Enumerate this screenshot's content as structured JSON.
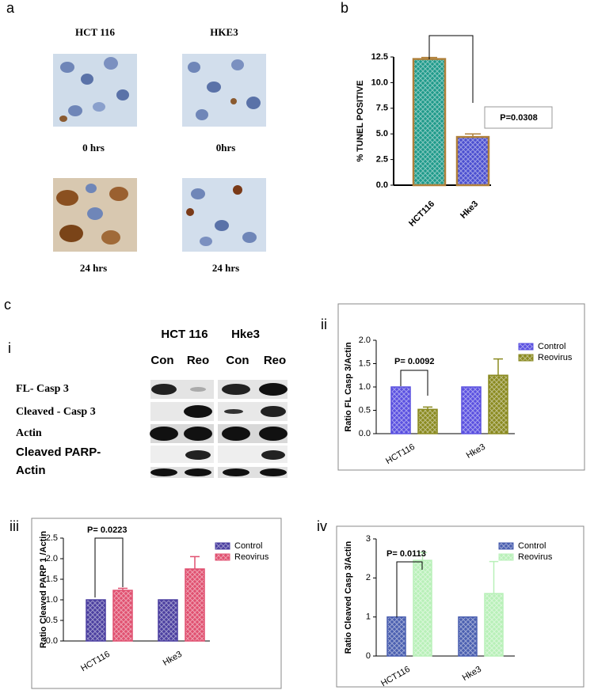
{
  "panels": {
    "a": {
      "label": "a",
      "columns": [
        "HCT 116",
        "HKE3"
      ],
      "captions": [
        [
          "0 hrs",
          "0hrs"
        ],
        [
          "24 hrs",
          "24 hrs"
        ]
      ]
    },
    "c": {
      "label": "c",
      "i": {
        "label": "i",
        "cell_lines": [
          "HCT 116",
          "Hke3"
        ],
        "conditions": [
          "Con",
          "Reo",
          "Con",
          "Reo"
        ],
        "rows": [
          "FL- Casp 3",
          "Cleaved - Casp 3",
          "Actin",
          "Cleaved PARP-",
          "Actin"
        ]
      }
    }
  },
  "chart_data": [
    {
      "type": "bar",
      "label": "b",
      "y_label": "% TUNEL POSITIVE",
      "categories": [
        "HCT116",
        "Hke3"
      ],
      "values": [
        12.3,
        4.7
      ],
      "errors": [
        0.15,
        0.3
      ],
      "colors": [
        "#1f9a8a",
        "#4b4fd0"
      ],
      "edgecolor": "#b0803a",
      "ylim": [
        0,
        12.5
      ],
      "yticks": [
        {
          "value": 0,
          "label": "0.0"
        },
        2.5,
        {
          "value": 5,
          "label": "5.0"
        },
        7.5,
        {
          "value": 10,
          "label": "10.0"
        },
        12.5
      ],
      "annotation": "P=0.0308"
    },
    {
      "type": "bar",
      "label": "ii",
      "y_label": "Ratio FL Casp 3/Actin",
      "categories": [
        "HCT116",
        "Hke3"
      ],
      "series": [
        {
          "name": "Control",
          "color": "#5a50e0",
          "values": [
            1.0,
            1.0
          ]
        },
        {
          "name": "Reovirus",
          "color": "#8a8a20",
          "values": [
            0.52,
            1.25
          ],
          "errors": [
            0.05,
            0.35
          ]
        }
      ],
      "ylim": [
        0,
        2
      ],
      "yticks": [
        {
          "value": 0,
          "label": "0.0"
        },
        0.5,
        {
          "value": 1,
          "label": "1.0"
        },
        1.5,
        {
          "value": 2,
          "label": "2.0"
        }
      ],
      "annotation": "P= 0.0092"
    },
    {
      "type": "bar",
      "label": "iii",
      "y_label": "Ratio Cleaved PARP 1 /Actin",
      "categories": [
        "HCT116",
        "Hke3"
      ],
      "series": [
        {
          "name": "Control",
          "color": "#4b3fa0",
          "values": [
            1.0,
            1.0
          ]
        },
        {
          "name": "Reovirus",
          "color": "#e05070",
          "values": [
            1.23,
            1.75
          ],
          "errors": [
            0.05,
            0.3
          ]
        }
      ],
      "ylim": [
        0,
        2.5
      ],
      "yticks": [
        {
          "value": 0,
          "label": "0.0"
        },
        0.5,
        {
          "value": 1,
          "label": "1.0"
        },
        1.5,
        {
          "value": 2,
          "label": "2.0"
        },
        2.5
      ],
      "annotation": "P= 0.0223"
    },
    {
      "type": "bar",
      "label": "iv",
      "y_label": "Ratio Cleaved Casp 3/Actin",
      "categories": [
        "HCT116",
        "Hke3"
      ],
      "series": [
        {
          "name": "Control",
          "color": "#4a5fb0",
          "values": [
            1.0,
            1.0
          ]
        },
        {
          "name": "Reovirus",
          "color": "#b8f0b8",
          "values": [
            2.45,
            1.6
          ],
          "errors": [
            0.2,
            0.82
          ]
        }
      ],
      "ylim": [
        0,
        3
      ],
      "yticks": [
        0,
        1,
        2,
        3
      ],
      "annotation": "P= 0.0113"
    }
  ]
}
